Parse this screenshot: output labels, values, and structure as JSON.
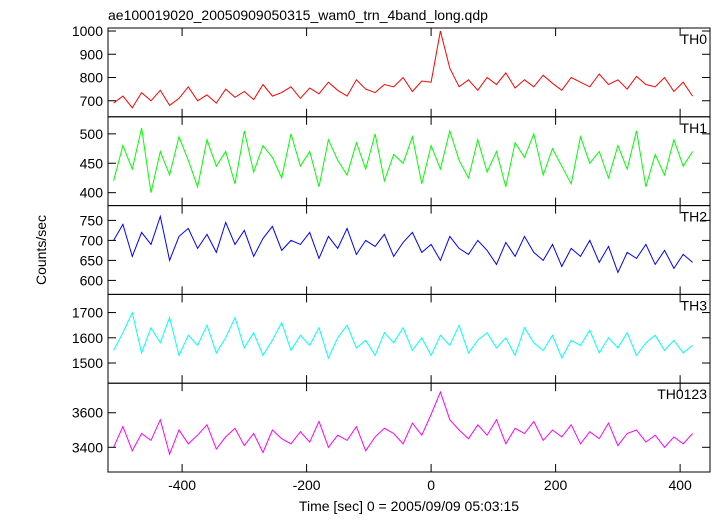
{
  "chart_data": {
    "type": "line",
    "title": "ae100019020_20050909050315_wam0_trn_4band_long.qdp",
    "x_label": "Time [sec] 0 = 2005/09/09 05:03:15",
    "y_label": "Counts/sec",
    "xlim": [
      -519,
      448
    ],
    "xticks": [
      -400,
      -200,
      0,
      200,
      400
    ],
    "x": [
      -510,
      -495,
      -480,
      -465,
      -450,
      -435,
      -420,
      -405,
      -390,
      -375,
      -360,
      -345,
      -330,
      -315,
      -300,
      -285,
      -270,
      -255,
      -240,
      -225,
      -210,
      -195,
      -180,
      -165,
      -150,
      -135,
      -120,
      -105,
      -90,
      -75,
      -60,
      -45,
      -30,
      -15,
      0,
      15,
      30,
      45,
      60,
      75,
      90,
      105,
      120,
      135,
      150,
      165,
      180,
      195,
      210,
      225,
      240,
      255,
      270,
      285,
      300,
      315,
      330,
      345,
      360,
      375,
      390,
      405,
      420
    ],
    "panels": [
      {
        "name": "TH0",
        "color": "#ff0000",
        "ylim": [
          631,
          1013
        ],
        "yticks": [
          700,
          800,
          900,
          1000
        ],
        "values": [
          690,
          720,
          670,
          735,
          700,
          745,
          680,
          710,
          760,
          700,
          725,
          690,
          750,
          715,
          740,
          705,
          770,
          720,
          735,
          760,
          710,
          755,
          730,
          780,
          745,
          720,
          790,
          750,
          735,
          770,
          760,
          800,
          740,
          785,
          780,
          1000,
          840,
          760,
          790,
          745,
          800,
          770,
          820,
          755,
          790,
          760,
          810,
          775,
          745,
          800,
          780,
          760,
          815,
          770,
          790,
          750,
          805,
          770,
          760,
          800,
          740,
          780,
          720
        ]
      },
      {
        "name": "TH1",
        "color": "#00ff00",
        "ylim": [
          378,
          529
        ],
        "yticks": [
          400,
          450,
          500
        ],
        "values": [
          420,
          480,
          440,
          510,
          400,
          470,
          430,
          495,
          455,
          410,
          490,
          445,
          470,
          415,
          505,
          435,
          480,
          460,
          425,
          500,
          445,
          470,
          410,
          490,
          455,
          430,
          485,
          440,
          500,
          420,
          465,
          450,
          495,
          415,
          480,
          440,
          505,
          455,
          425,
          490,
          435,
          470,
          410,
          485,
          460,
          500,
          430,
          475,
          445,
          415,
          495,
          450,
          470,
          425,
          480,
          440,
          505,
          410,
          465,
          430,
          490,
          445,
          470
        ]
      },
      {
        "name": "TH2",
        "color": "#0000ff",
        "ylim": [
          565,
          787
        ],
        "yticks": [
          600,
          650,
          700,
          750
        ],
        "values": [
          700,
          740,
          660,
          720,
          690,
          760,
          650,
          710,
          730,
          680,
          715,
          670,
          745,
          690,
          725,
          660,
          705,
          735,
          675,
          700,
          690,
          720,
          655,
          710,
          680,
          730,
          665,
          700,
          685,
          715,
          660,
          695,
          720,
          670,
          690,
          650,
          710,
          680,
          665,
          700,
          675,
          640,
          695,
          660,
          710,
          670,
          650,
          690,
          635,
          680,
          660,
          700,
          645,
          685,
          620,
          670,
          655,
          690,
          640,
          675,
          630,
          665,
          645
        ]
      },
      {
        "name": "TH3",
        "color": "#00ffff",
        "ylim": [
          1420,
          1772
        ],
        "yticks": [
          1500,
          1600,
          1700
        ],
        "values": [
          1550,
          1620,
          1700,
          1540,
          1640,
          1580,
          1680,
          1530,
          1610,
          1570,
          1650,
          1540,
          1600,
          1680,
          1560,
          1620,
          1530,
          1590,
          1660,
          1550,
          1610,
          1570,
          1640,
          1520,
          1600,
          1650,
          1560,
          1590,
          1530,
          1620,
          1580,
          1640,
          1550,
          1600,
          1530,
          1610,
          1570,
          1650,
          1540,
          1590,
          1620,
          1560,
          1600,
          1530,
          1640,
          1580,
          1550,
          1610,
          1520,
          1590,
          1570,
          1630,
          1540,
          1600,
          1560,
          1620,
          1530,
          1580,
          1610,
          1550,
          1590,
          1540,
          1570
        ]
      },
      {
        "name": "TH0123",
        "color": "#ff00ff",
        "ylim": [
          3257,
          3771
        ],
        "yticks": [
          3400,
          3600
        ],
        "values": [
          3400,
          3520,
          3380,
          3480,
          3440,
          3560,
          3360,
          3500,
          3420,
          3470,
          3530,
          3390,
          3460,
          3510,
          3410,
          3480,
          3370,
          3500,
          3450,
          3420,
          3490,
          3430,
          3550,
          3400,
          3470,
          3440,
          3520,
          3380,
          3460,
          3510,
          3480,
          3420,
          3540,
          3470,
          3590,
          3720,
          3560,
          3500,
          3450,
          3530,
          3470,
          3560,
          3420,
          3510,
          3480,
          3550,
          3440,
          3500,
          3460,
          3530,
          3420,
          3490,
          3450,
          3540,
          3410,
          3480,
          3500,
          3430,
          3470,
          3400,
          3460,
          3420,
          3480
        ]
      }
    ]
  }
}
